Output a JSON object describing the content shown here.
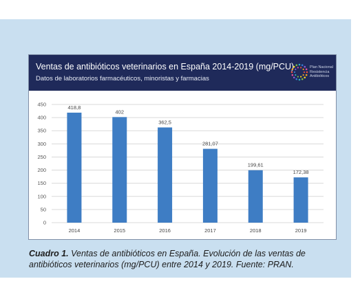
{
  "header": {
    "title": "Ventas de antibióticos veterinarios en España 2014-2019 (mg/PCU)",
    "subtitle": "Datos de laboratorios farmacéuticos, minoristas y farmacias",
    "logo_lines": [
      "Plan Nacional",
      "Resistencia",
      "Antibióticos"
    ]
  },
  "caption": {
    "label": "Cuadro 1.",
    "text": " Ventas de antibióticos en España. Evolución de las ventas de antibióticos veterinarios (mg/PCU) entre 2014 y 2019. Fuente: PRAN."
  },
  "colors": {
    "bar": "#3e7dc4",
    "header": "#1f2a5a",
    "panel": "#c9dff0",
    "grid": "#d9d9d9"
  },
  "chart_data": {
    "type": "bar",
    "title": "Ventas de antibióticos veterinarios en España 2014-2019 (mg/PCU)",
    "subtitle": "Datos de laboratorios farmacéuticos, minoristas y farmacias",
    "categories": [
      "2014",
      "2015",
      "2016",
      "2017",
      "2018",
      "2019"
    ],
    "values": [
      418.8,
      402,
      362.5,
      281.07,
      199.61,
      172.38
    ],
    "value_labels": [
      "418,8",
      "402",
      "362,5",
      "281,07",
      "199,61",
      "172,38"
    ],
    "ylim": [
      0,
      450
    ],
    "yticks": [
      0,
      50,
      100,
      150,
      200,
      250,
      300,
      350,
      400,
      450
    ],
    "grid": true,
    "xlabel": "",
    "ylabel": ""
  }
}
